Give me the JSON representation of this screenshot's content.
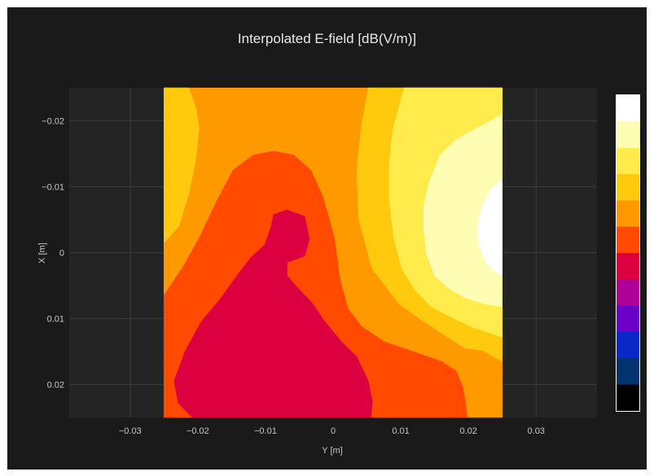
{
  "chart_data": {
    "type": "contour",
    "title": "Interpolated E-field [dB(V/m)]",
    "xlabel": "Y [m]",
    "ylabel": "X [m]",
    "xlim": [
      -0.039,
      0.039
    ],
    "ylim": [
      0.025,
      -0.025
    ],
    "x_ticks": [
      {
        "value": -0.03,
        "label": "−0.03"
      },
      {
        "value": -0.02,
        "label": "−0.02"
      },
      {
        "value": -0.01,
        "label": "−0.01"
      },
      {
        "value": 0,
        "label": "0"
      },
      {
        "value": 0.01,
        "label": "0.01"
      },
      {
        "value": 0.02,
        "label": "0.02"
      },
      {
        "value": 0.03,
        "label": "0.03"
      }
    ],
    "y_ticks": [
      {
        "value": -0.02,
        "label": "−0.02"
      },
      {
        "value": -0.01,
        "label": "−0.01"
      },
      {
        "value": 0,
        "label": "0"
      },
      {
        "value": 0.01,
        "label": "0.01"
      },
      {
        "value": 0.02,
        "label": "0.02"
      }
    ],
    "data_extent": {
      "y_min": -0.025,
      "y_max": 0.025,
      "x_min": -0.025,
      "x_max": 0.025
    },
    "grid": true,
    "colorbar": {
      "position": "right",
      "colors": [
        "#ffffff",
        "#fffdb4",
        "#ffec4c",
        "#ffc90e",
        "#ff9900",
        "#ff4a00",
        "#dc0040",
        "#b0009a",
        "#6c00c6",
        "#0a28c6",
        "#03326e",
        "#000000"
      ]
    },
    "contour_regions": [
      {
        "level": 4,
        "color": "#ff9900",
        "points": [
          [
            -0.025,
            -0.025
          ],
          [
            0.025,
            -0.025
          ],
          [
            0.025,
            0.025
          ],
          [
            -0.025,
            0.025
          ]
        ]
      },
      {
        "level": 3,
        "color": "#ffc90e",
        "points": [
          [
            -0.025,
            -0.025
          ],
          [
            -0.0213,
            -0.025
          ],
          [
            -0.0203,
            -0.022
          ],
          [
            -0.0198,
            -0.019
          ],
          [
            -0.0203,
            -0.014
          ],
          [
            -0.0213,
            -0.009
          ],
          [
            -0.0228,
            -0.004
          ],
          [
            -0.025,
            -0.0015
          ]
        ]
      },
      {
        "level": 3,
        "color": "#ffc90e",
        "points": [
          [
            0.0052,
            -0.025
          ],
          [
            0.025,
            -0.025
          ],
          [
            0.025,
            0.0165
          ],
          [
            0.022,
            0.0148
          ],
          [
            0.0195,
            0.0145
          ],
          [
            0.016,
            0.0122
          ],
          [
            0.0125,
            0.0098
          ],
          [
            0.0098,
            0.0078
          ],
          [
            0.0058,
            0.0025
          ],
          [
            0.0038,
            -0.005
          ],
          [
            0.0035,
            -0.0125
          ],
          [
            0.0042,
            -0.0195
          ]
        ]
      },
      {
        "level": 2,
        "color": "#ffec4c",
        "points": [
          [
            0.0105,
            -0.025
          ],
          [
            0.025,
            -0.025
          ],
          [
            0.025,
            0.0128
          ],
          [
            0.0205,
            0.0113
          ],
          [
            0.0175,
            0.0098
          ],
          [
            0.0145,
            0.0082
          ],
          [
            0.0122,
            0.0058
          ],
          [
            0.0102,
            0.0025
          ],
          [
            0.009,
            -0.002
          ],
          [
            0.0083,
            -0.008
          ],
          [
            0.0083,
            -0.0135
          ],
          [
            0.0088,
            -0.0185
          ]
        ]
      },
      {
        "level": 1,
        "color": "#fffdb4",
        "points": [
          [
            0.025,
            -0.021
          ],
          [
            0.023,
            -0.0198
          ],
          [
            0.0205,
            -0.0185
          ],
          [
            0.018,
            -0.017
          ],
          [
            0.0158,
            -0.0148
          ],
          [
            0.0142,
            -0.0108
          ],
          [
            0.0134,
            -0.007
          ],
          [
            0.0134,
            -0.0035
          ],
          [
            0.0138,
            0.0002
          ],
          [
            0.015,
            0.0035
          ],
          [
            0.0172,
            0.0055
          ],
          [
            0.0196,
            0.0069
          ],
          [
            0.0225,
            0.0078
          ],
          [
            0.025,
            0.0082
          ]
        ]
      },
      {
        "level": 0,
        "color": "#ffffff",
        "points": [
          [
            0.025,
            -0.0111
          ],
          [
            0.0235,
            -0.0098
          ],
          [
            0.0222,
            -0.0075
          ],
          [
            0.0214,
            -0.0045
          ],
          [
            0.0214,
            -0.0018
          ],
          [
            0.0222,
            0.0008
          ],
          [
            0.0235,
            0.0025
          ],
          [
            0.025,
            0.0035
          ]
        ]
      },
      {
        "level": 5,
        "color": "#ff4a00",
        "points": [
          [
            -0.025,
            0.025
          ],
          [
            -0.025,
            0.0065
          ],
          [
            -0.0222,
            0.0022
          ],
          [
            -0.0198,
            -0.0022
          ],
          [
            -0.0171,
            -0.008
          ],
          [
            -0.0148,
            -0.0125
          ],
          [
            -0.0118,
            -0.0148
          ],
          [
            -0.0088,
            -0.0154
          ],
          [
            -0.0058,
            -0.0148
          ],
          [
            -0.0033,
            -0.0125
          ],
          [
            -0.0015,
            -0.0085
          ],
          [
            0.0002,
            -0.0022
          ],
          [
            0.001,
            0.004
          ],
          [
            0.0022,
            0.0085
          ],
          [
            0.0042,
            0.0112
          ],
          [
            0.0075,
            0.0135
          ],
          [
            0.0118,
            0.015
          ],
          [
            0.016,
            0.0165
          ],
          [
            0.0182,
            0.018
          ],
          [
            0.0192,
            0.0205
          ],
          [
            0.0196,
            0.023
          ],
          [
            0.0198,
            0.025
          ]
        ]
      },
      {
        "level": 6,
        "color": "#dc0040",
        "points": [
          [
            -0.0208,
            0.025
          ],
          [
            -0.0229,
            0.0228
          ],
          [
            -0.0235,
            0.0195
          ],
          [
            -0.0218,
            0.0148
          ],
          [
            -0.0195,
            0.0105
          ],
          [
            -0.0165,
            0.0068
          ],
          [
            -0.0142,
            0.0035
          ],
          [
            -0.0122,
            0.0008
          ],
          [
            -0.0101,
            -0.0012
          ],
          [
            -0.0092,
            -0.0038
          ],
          [
            -0.0088,
            -0.0058
          ],
          [
            -0.0068,
            -0.0065
          ],
          [
            -0.0042,
            -0.0055
          ],
          [
            -0.0035,
            -0.002
          ],
          [
            -0.0042,
            0.0005
          ],
          [
            -0.0068,
            0.0015
          ],
          [
            -0.0068,
            0.0035
          ],
          [
            -0.0051,
            0.0055
          ],
          [
            -0.0032,
            0.0075
          ],
          [
            -0.0012,
            0.0105
          ],
          [
            0.0012,
            0.0135
          ],
          [
            0.0035,
            0.0158
          ],
          [
            0.0052,
            0.0195
          ],
          [
            0.0058,
            0.0225
          ],
          [
            0.0056,
            0.025
          ]
        ]
      }
    ]
  }
}
